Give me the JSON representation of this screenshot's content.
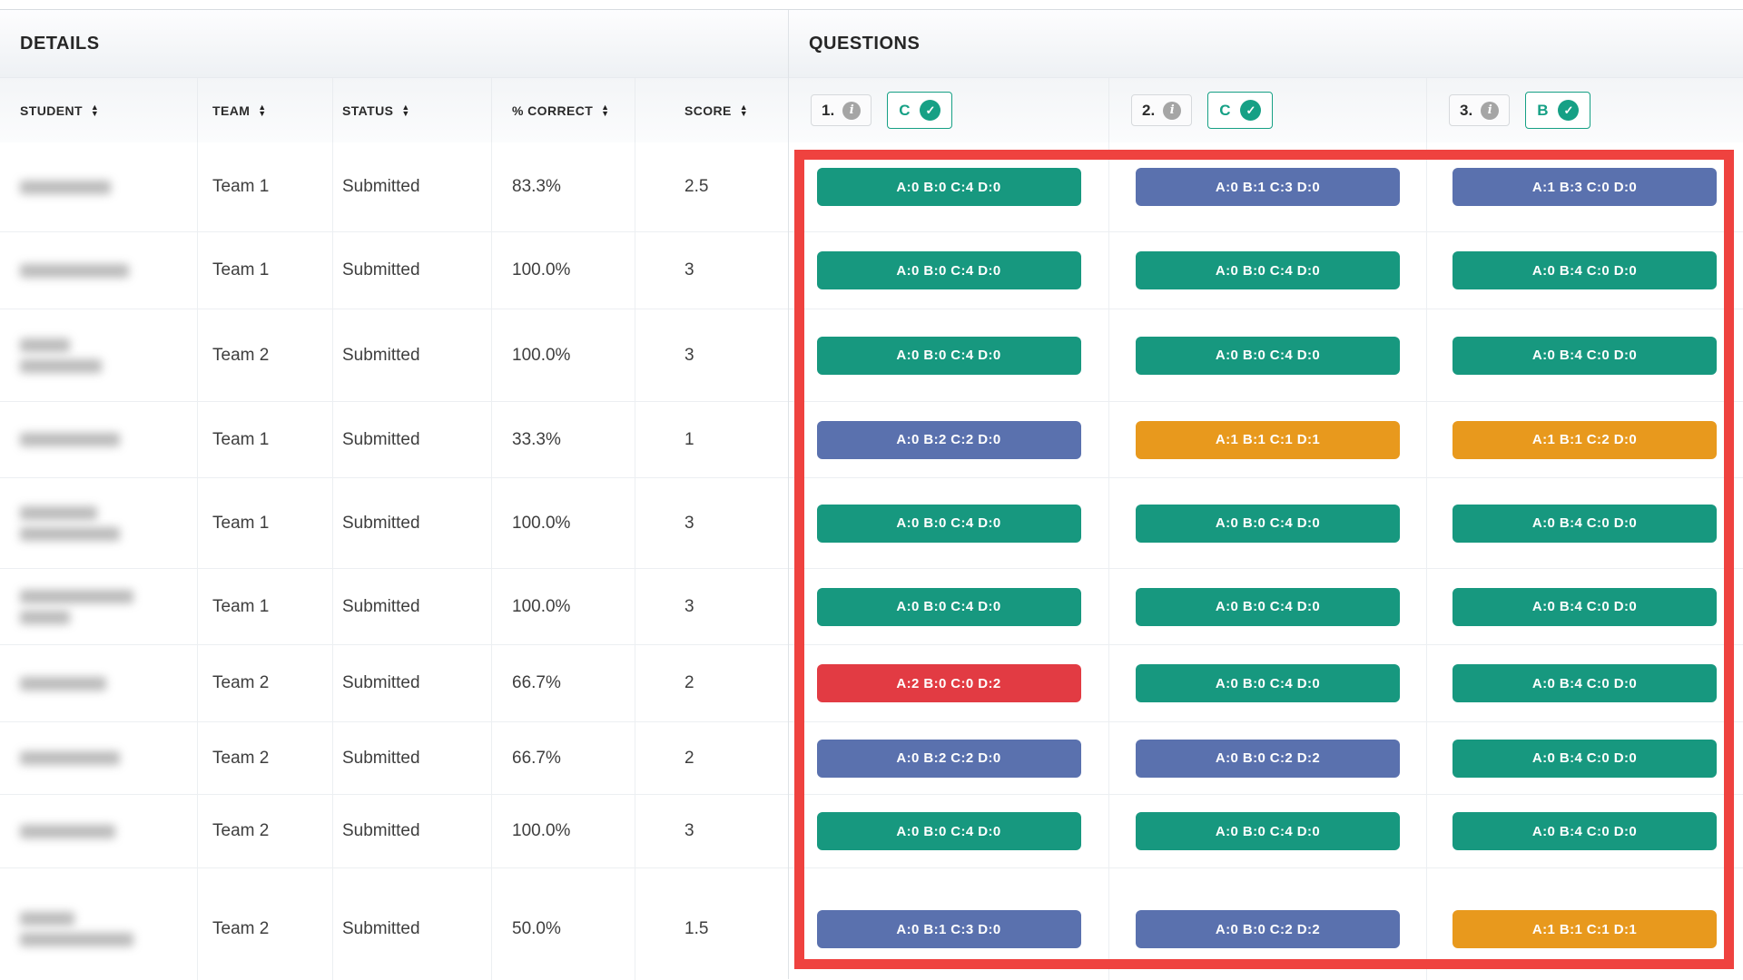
{
  "details": {
    "title": "DETAILS",
    "columns": [
      {
        "label": "STUDENT",
        "sortable": true
      },
      {
        "label": "TEAM",
        "sortable": true
      },
      {
        "label": "STATUS",
        "sortable": true
      },
      {
        "label": "% CORRECT",
        "sortable": true
      },
      {
        "label": "SCORE",
        "sortable": true
      }
    ]
  },
  "questions": {
    "title": "QUESTIONS",
    "headers": [
      {
        "number": "1.",
        "correct_answer": "C"
      },
      {
        "number": "2.",
        "correct_answer": "C"
      },
      {
        "number": "3.",
        "correct_answer": "B"
      }
    ]
  },
  "rows": [
    {
      "student_redacted": true,
      "name_bar_widths": [
        100
      ],
      "team": "Team 1",
      "status": "Submitted",
      "percent_correct": "83.3%",
      "score": "2.5",
      "answers": [
        {
          "text": "A:0 B:0 C:4 D:0",
          "color": "green"
        },
        {
          "text": "A:0 B:1 C:3 D:0",
          "color": "blue"
        },
        {
          "text": "A:1 B:3 C:0 D:0",
          "color": "blue"
        }
      ]
    },
    {
      "student_redacted": true,
      "name_bar_widths": [
        120
      ],
      "team": "Team 1",
      "status": "Submitted",
      "percent_correct": "100.0%",
      "score": "3",
      "answers": [
        {
          "text": "A:0 B:0 C:4 D:0",
          "color": "green"
        },
        {
          "text": "A:0 B:0 C:4 D:0",
          "color": "green"
        },
        {
          "text": "A:0 B:4 C:0 D:0",
          "color": "green"
        }
      ]
    },
    {
      "student_redacted": true,
      "name_bar_widths": [
        55,
        90
      ],
      "team": "Team 2",
      "status": "Submitted",
      "percent_correct": "100.0%",
      "score": "3",
      "answers": [
        {
          "text": "A:0 B:0 C:4 D:0",
          "color": "green"
        },
        {
          "text": "A:0 B:0 C:4 D:0",
          "color": "green"
        },
        {
          "text": "A:0 B:4 C:0 D:0",
          "color": "green"
        }
      ]
    },
    {
      "student_redacted": true,
      "name_bar_widths": [
        110
      ],
      "team": "Team 1",
      "status": "Submitted",
      "percent_correct": "33.3%",
      "score": "1",
      "answers": [
        {
          "text": "A:0 B:2 C:2 D:0",
          "color": "blue"
        },
        {
          "text": "A:1 B:1 C:1 D:1",
          "color": "orange"
        },
        {
          "text": "A:1 B:1 C:2 D:0",
          "color": "orange"
        }
      ]
    },
    {
      "student_redacted": true,
      "name_bar_widths": [
        85,
        110
      ],
      "team": "Team 1",
      "status": "Submitted",
      "percent_correct": "100.0%",
      "score": "3",
      "answers": [
        {
          "text": "A:0 B:0 C:4 D:0",
          "color": "green"
        },
        {
          "text": "A:0 B:0 C:4 D:0",
          "color": "green"
        },
        {
          "text": "A:0 B:4 C:0 D:0",
          "color": "green"
        }
      ]
    },
    {
      "student_redacted": true,
      "name_bar_widths": [
        125,
        55
      ],
      "team": "Team 1",
      "status": "Submitted",
      "percent_correct": "100.0%",
      "score": "3",
      "answers": [
        {
          "text": "A:0 B:0 C:4 D:0",
          "color": "green"
        },
        {
          "text": "A:0 B:0 C:4 D:0",
          "color": "green"
        },
        {
          "text": "A:0 B:4 C:0 D:0",
          "color": "green"
        }
      ]
    },
    {
      "student_redacted": true,
      "name_bar_widths": [
        95
      ],
      "team": "Team 2",
      "status": "Submitted",
      "percent_correct": "66.7%",
      "score": "2",
      "answers": [
        {
          "text": "A:2 B:0 C:0 D:2",
          "color": "red"
        },
        {
          "text": "A:0 B:0 C:4 D:0",
          "color": "green"
        },
        {
          "text": "A:0 B:4 C:0 D:0",
          "color": "green"
        }
      ]
    },
    {
      "student_redacted": true,
      "name_bar_widths": [
        110
      ],
      "team": "Team 2",
      "status": "Submitted",
      "percent_correct": "66.7%",
      "score": "2",
      "answers": [
        {
          "text": "A:0 B:2 C:2 D:0",
          "color": "blue"
        },
        {
          "text": "A:0 B:0 C:2 D:2",
          "color": "blue"
        },
        {
          "text": "A:0 B:4 C:0 D:0",
          "color": "green"
        }
      ]
    },
    {
      "student_redacted": true,
      "name_bar_widths": [
        105
      ],
      "team": "Team 2",
      "status": "Submitted",
      "percent_correct": "100.0%",
      "score": "3",
      "answers": [
        {
          "text": "A:0 B:0 C:4 D:0",
          "color": "green"
        },
        {
          "text": "A:0 B:0 C:4 D:0",
          "color": "green"
        },
        {
          "text": "A:0 B:4 C:0 D:0",
          "color": "green"
        }
      ]
    },
    {
      "student_redacted": true,
      "name_bar_widths": [
        60,
        125
      ],
      "team": "Team 2",
      "status": "Submitted",
      "percent_correct": "50.0%",
      "score": "1.5",
      "answers": [
        {
          "text": "A:0 B:1 C:3 D:0",
          "color": "blue"
        },
        {
          "text": "A:0 B:0 C:2 D:2",
          "color": "blue"
        },
        {
          "text": "A:1 B:1 C:1 D:1",
          "color": "orange"
        }
      ]
    }
  ],
  "colors": {
    "green": "#17987f",
    "blue": "#5a71ae",
    "orange": "#e8991d",
    "red": "#e23b43",
    "answer_accent": "#16a085",
    "highlight": "#ef423f"
  },
  "icons": {
    "sort_up": "▲",
    "sort_down": "▼",
    "info": "i",
    "check": "✓"
  }
}
